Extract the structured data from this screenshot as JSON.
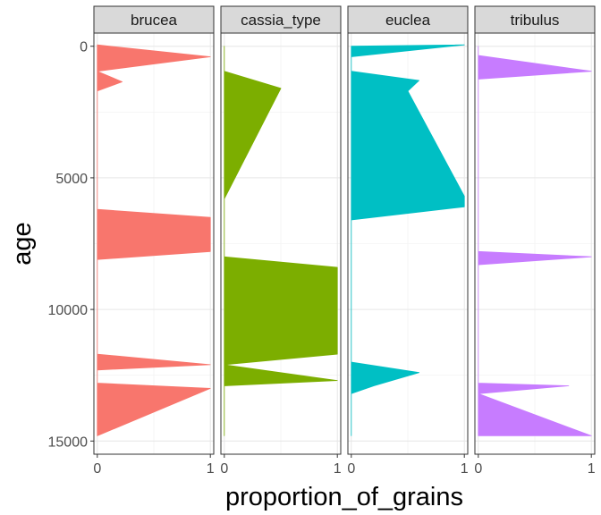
{
  "chart_data": {
    "type": "area",
    "xlabel": "proportion_of_grains",
    "ylabel": "age",
    "y_reversed": true,
    "ylim": [
      15500,
      -500
    ],
    "xlim": [
      -0.03,
      1.03
    ],
    "y_ticks": [
      0,
      5000,
      10000,
      15000
    ],
    "y_tick_labels": [
      "0",
      "5000",
      "10000",
      "15000"
    ],
    "x_ticks": [
      0,
      1
    ],
    "x_tick_labels": [
      "0",
      "1"
    ],
    "grid": true,
    "theme": "bw",
    "facets": [
      {
        "name": "brucea",
        "color": "#F8766D",
        "points": [
          [
            0,
            0
          ],
          [
            0,
            -50
          ],
          [
            1,
            400
          ],
          [
            0,
            950
          ],
          [
            0.22,
            1350
          ],
          [
            0,
            1700
          ],
          [
            0,
            6200
          ],
          [
            1,
            6500
          ],
          [
            1,
            7800
          ],
          [
            0,
            8100
          ],
          [
            0,
            11700
          ],
          [
            1,
            12100
          ],
          [
            0,
            12300
          ],
          [
            0,
            12800
          ],
          [
            1,
            13000
          ],
          [
            0,
            14800
          ]
        ]
      },
      {
        "name": "cassia_type",
        "color": "#7CAE00",
        "points": [
          [
            0,
            0
          ],
          [
            0,
            950
          ],
          [
            0.5,
            1600
          ],
          [
            0,
            5800
          ],
          [
            0,
            8000
          ],
          [
            1,
            8400
          ],
          [
            1,
            11700
          ],
          [
            0,
            12100
          ],
          [
            1,
            12700
          ],
          [
            0,
            12900
          ],
          [
            0,
            14800
          ]
        ]
      },
      {
        "name": "euclea",
        "color": "#00BFC4",
        "points": [
          [
            0,
            0
          ],
          [
            1,
            -50
          ],
          [
            0,
            400
          ],
          [
            0,
            950
          ],
          [
            0.6,
            1300
          ],
          [
            0.5,
            1700
          ],
          [
            1,
            5700
          ],
          [
            1,
            6100
          ],
          [
            0,
            6600
          ],
          [
            0,
            12000
          ],
          [
            0.6,
            12400
          ],
          [
            0.2,
            12900
          ],
          [
            0,
            13200
          ],
          [
            0,
            14800
          ]
        ]
      },
      {
        "name": "tribulus",
        "color": "#C77CFF",
        "points": [
          [
            0,
            0
          ],
          [
            0,
            350
          ],
          [
            1,
            950
          ],
          [
            0,
            1250
          ],
          [
            0,
            7800
          ],
          [
            1,
            8000
          ],
          [
            0,
            8300
          ],
          [
            0,
            12800
          ],
          [
            0.8,
            12900
          ],
          [
            0,
            13200
          ],
          [
            1,
            14800
          ],
          [
            0,
            14800
          ]
        ]
      }
    ]
  }
}
